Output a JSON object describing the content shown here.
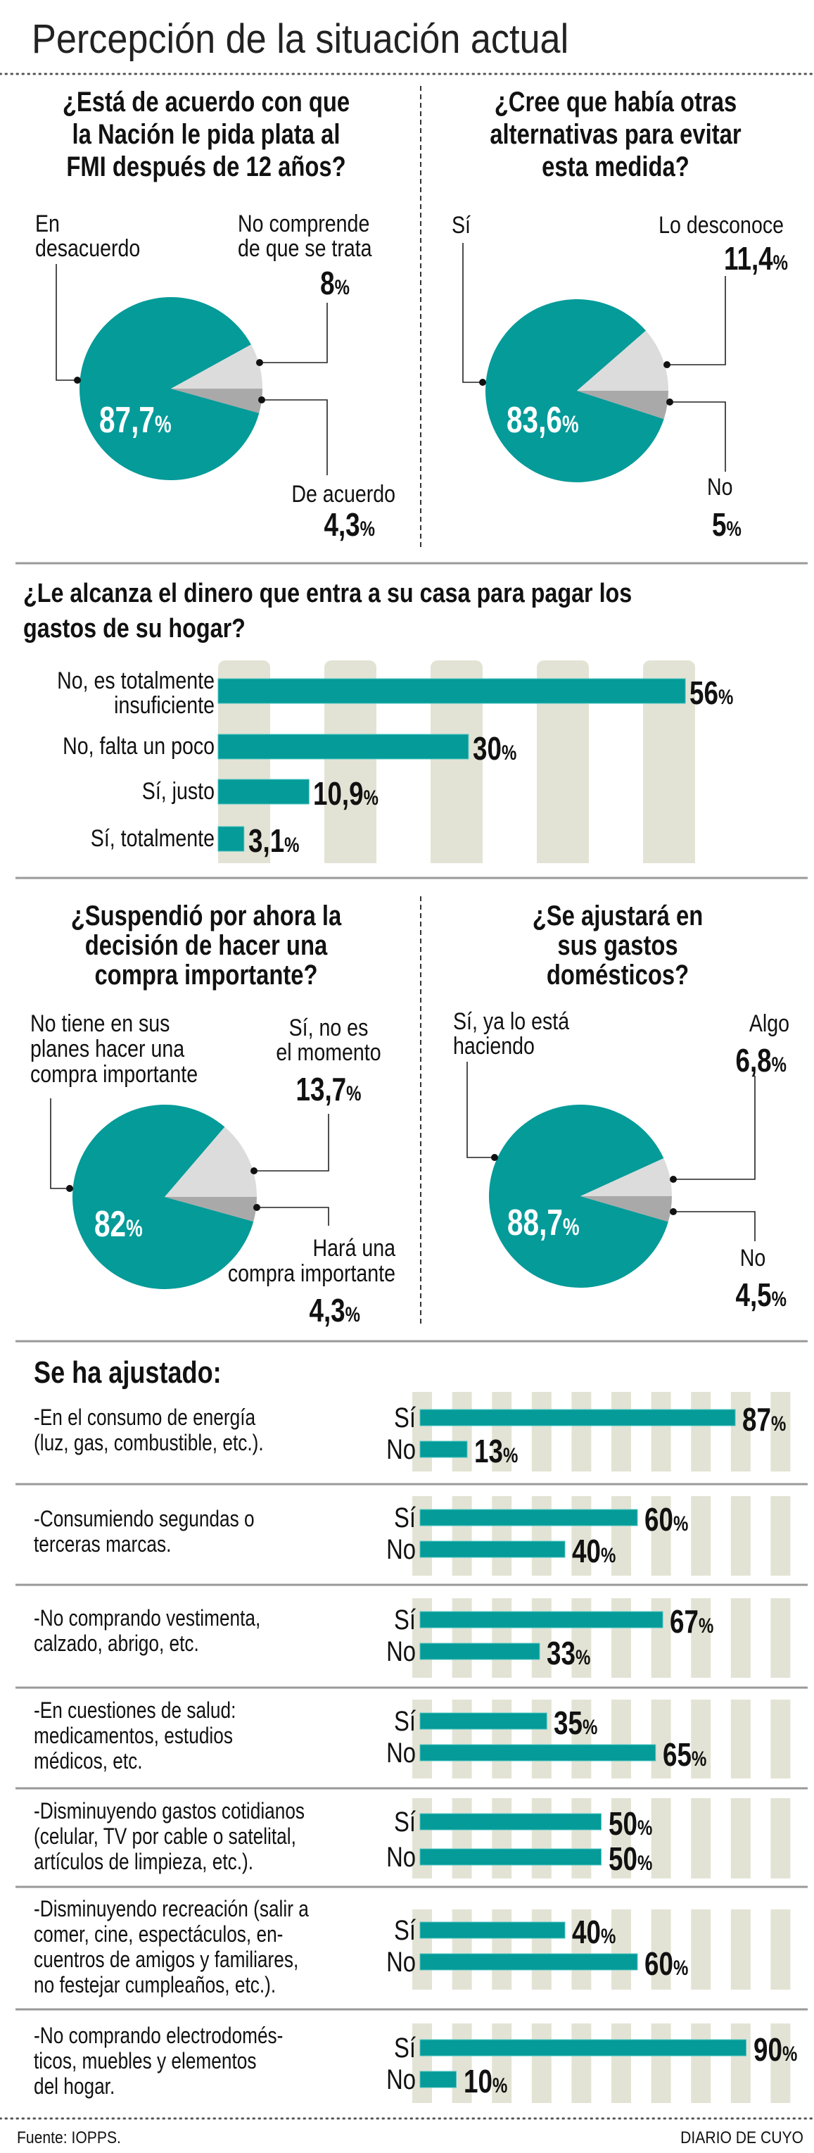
{
  "title": "Percepción de la situación actual",
  "unit": "%",
  "footer": {
    "source": "Fuente: IOPPS.",
    "brand": "DIARIO DE CUYO"
  },
  "colors": {
    "accent": "#049b99",
    "light": "#dcdcdc",
    "dark": "#a9a9a9",
    "column": "#e3e3d5",
    "rule": "#999999"
  },
  "chart_data": [
    {
      "type": "pie",
      "title": "¿Está de acuerdo con que\nla Nación le pida plata al\nFMI después de 12 años?",
      "slices": [
        {
          "label": "En\ndesacuerdo",
          "value": 87.7,
          "display": "87,7"
        },
        {
          "label": "No comprende\nde que se trata",
          "value": 8,
          "display": "8"
        },
        {
          "label": "De acuerdo",
          "value": 4.3,
          "display": "4,3"
        }
      ]
    },
    {
      "type": "pie",
      "title": "¿Cree que había otras\nalternativas para evitar\nesta medida?",
      "slices": [
        {
          "label": "Sí",
          "value": 83.6,
          "display": "83,6"
        },
        {
          "label": "Lo desconoce",
          "value": 11.4,
          "display": "11,4"
        },
        {
          "label": "No",
          "value": 5,
          "display": "5"
        }
      ]
    },
    {
      "type": "bar",
      "title": "¿Le alcanza el dinero que entra a su casa para pagar los\ngastos de su hogar?",
      "categories": [
        "No, es totalmente\ninsuficiente",
        "No, falta un poco",
        "Sí, justo",
        "Sí, totalmente"
      ],
      "values": [
        56,
        30,
        10.9,
        3.1
      ],
      "display": [
        "56",
        "30",
        "10,9",
        "3,1"
      ]
    },
    {
      "type": "pie",
      "title": "¿Suspendió por ahora la\ndecisión de hacer una\ncompra importante?",
      "slices": [
        {
          "label": "No tiene en sus\nplanes hacer una\ncompra importante",
          "value": 82,
          "display": "82"
        },
        {
          "label": "Sí, no es\nel momento",
          "value": 13.7,
          "display": "13,7"
        },
        {
          "label": "Hará una\ncompra importante",
          "value": 4.3,
          "display": "4,3"
        }
      ]
    },
    {
      "type": "pie",
      "title": "¿Se ajustará en\nsus gastos\ndomésticos?",
      "slices": [
        {
          "label": "Sí, ya lo está\nhaciendo",
          "value": 88.7,
          "display": "88,7"
        },
        {
          "label": "Algo",
          "value": 6.8,
          "display": "6,8"
        },
        {
          "label": "No",
          "value": 4.5,
          "display": "4,5"
        }
      ]
    },
    {
      "type": "bar",
      "title": "Se ha ajustado:",
      "series": [
        "Sí",
        "No"
      ],
      "items": [
        {
          "label": "-En el consumo de energía\n(luz, gas, combustible, etc.).",
          "values": [
            87,
            13
          ],
          "display": [
            "87",
            "13"
          ]
        },
        {
          "label": "-Consumiendo segundas o\nterceras marcas.",
          "values": [
            60,
            40
          ],
          "display": [
            "60",
            "40"
          ]
        },
        {
          "label": "-No comprando vestimenta,\ncalzado, abrigo, etc.",
          "values": [
            67,
            33
          ],
          "display": [
            "67",
            "33"
          ]
        },
        {
          "label": "-En cuestiones de salud:\nmedicamentos, estudios\nmédicos, etc.",
          "values": [
            35,
            65
          ],
          "display": [
            "35",
            "65"
          ]
        },
        {
          "label": "-Disminuyendo gastos cotidianos\n(celular, TV por cable o satelital,\nartículos de limpieza, etc.).",
          "values": [
            50,
            50
          ],
          "display": [
            "50",
            "50"
          ]
        },
        {
          "label": "-Disminuyendo recreación (salir a\ncomer, cine, espectáculos, en-\ncuentros de amigos y familiares,\nno festejar cumpleaños, etc.).",
          "values": [
            40,
            60
          ],
          "display": [
            "40",
            "60"
          ]
        },
        {
          "label": "-No comprando electrodomés-\nticos, muebles y elementos\ndel hogar.",
          "values": [
            90,
            10
          ],
          "display": [
            "90",
            "10"
          ]
        }
      ]
    }
  ]
}
